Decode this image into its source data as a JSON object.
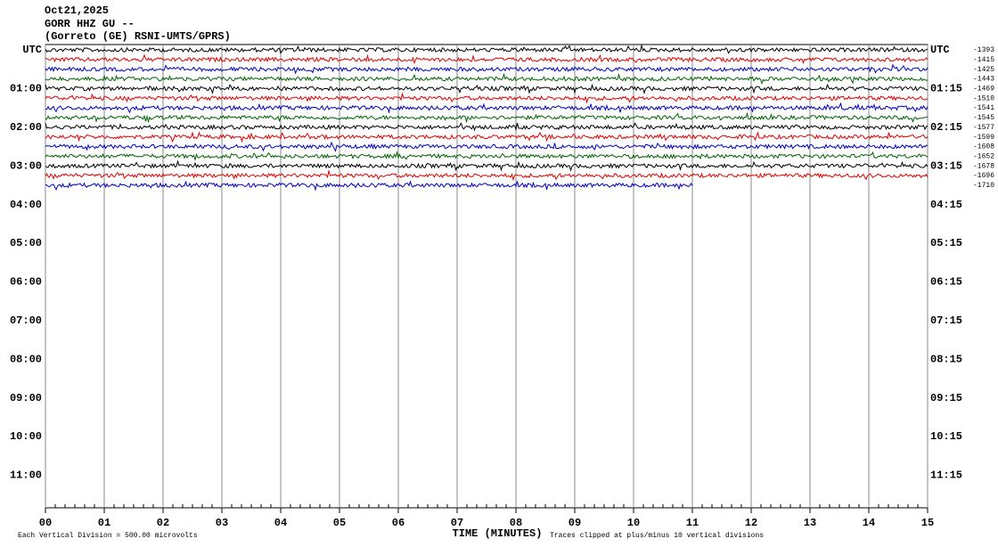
{
  "chart_data": {
    "type": "helicorder",
    "title": "Oct21,2025",
    "subtitle": "GORR HHZ GU --",
    "station": "(Gorreto (GE) RSNI-UMTS/GPRS)",
    "left_labels": [
      "UTC",
      "01:00",
      "02:00",
      "03:00",
      "04:00",
      "05:00",
      "06:00",
      "07:00",
      "08:00",
      "09:00",
      "10:00",
      "11:00"
    ],
    "right_labels": [
      "UTC",
      "01:15",
      "02:15",
      "03:15",
      "04:15",
      "05:15",
      "06:15",
      "07:15",
      "08:15",
      "09:15",
      "10:15",
      "11:15"
    ],
    "trace_labels": [
      -1393,
      -1415,
      -1425,
      -1443,
      -1469,
      -1510,
      -1541,
      -1545,
      -1577,
      -1599,
      -1608,
      -1652,
      -1678,
      -1696,
      -1710
    ],
    "trace_colors": [
      "#000000",
      "#e00000",
      "#0000c0",
      "#006400"
    ],
    "trace_ends": [
      15,
      15,
      15,
      15,
      15,
      15,
      15,
      15,
      15,
      15,
      15,
      15,
      15,
      15,
      11
    ],
    "xlabel": "TIME (MINUTES)",
    "xlim": [
      0,
      15
    ],
    "xticks": [
      {
        "value": 0,
        "label": "00"
      },
      {
        "value": 1,
        "label": "01"
      },
      {
        "value": 2,
        "label": "02"
      },
      {
        "value": 3,
        "label": "03"
      },
      {
        "value": 4,
        "label": "04"
      },
      {
        "value": 5,
        "label": "05"
      },
      {
        "value": 6,
        "label": "06"
      },
      {
        "value": 7,
        "label": "07"
      },
      {
        "value": 8,
        "label": "08"
      },
      {
        "value": 9,
        "label": "09"
      },
      {
        "value": 10,
        "label": "10"
      },
      {
        "value": 11,
        "label": "11"
      },
      {
        "value": 12,
        "label": "12"
      },
      {
        "value": 13,
        "label": "13"
      },
      {
        "value": 14,
        "label": "14"
      },
      {
        "value": 15,
        "label": "15"
      }
    ],
    "note_left": "Each Vertical Division =  500.00 microvolts",
    "note_right": "Traces clipped at plus/minus 10 vertical divisions"
  }
}
